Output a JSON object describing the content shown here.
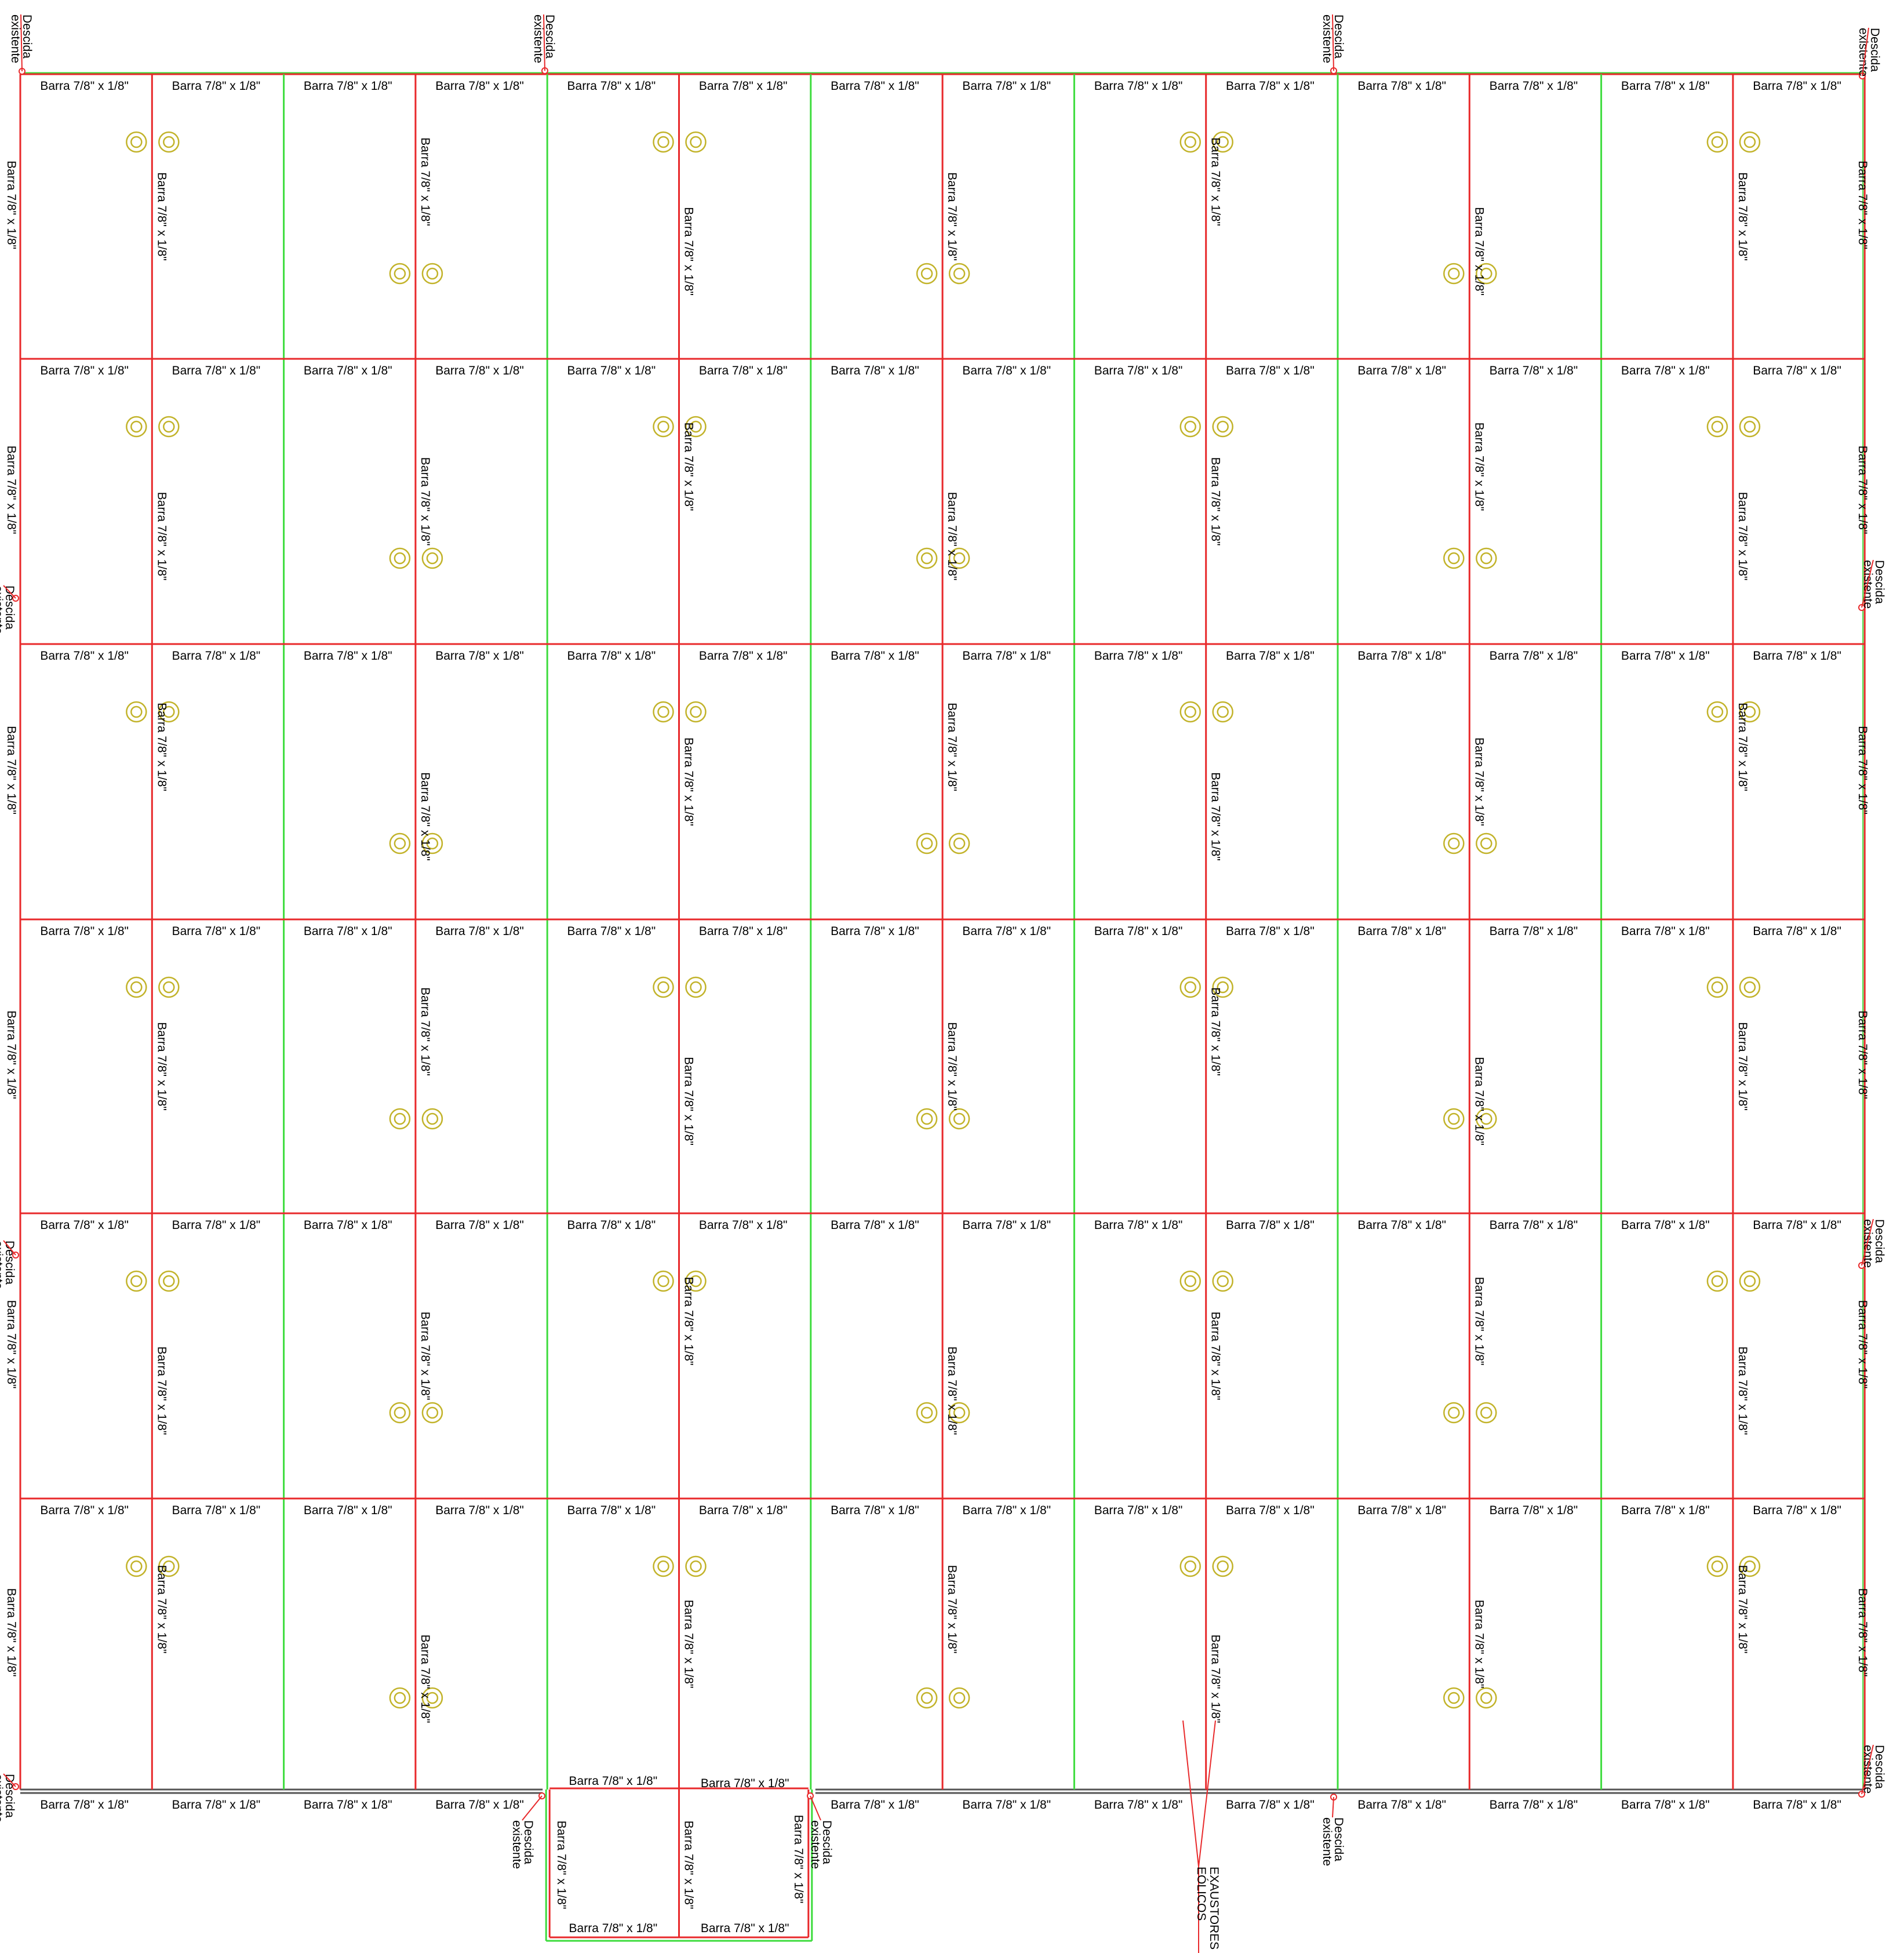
{
  "drawing": {
    "bar_label": "Barra 7/8\" x 1/8\"",
    "downconductor_label": [
      "Descida",
      "existente"
    ],
    "exhaust_label": [
      "EXAUSTORES",
      "EÓLICOS"
    ],
    "grid": {
      "columns": 14,
      "rows": 6,
      "annex_columns": 2
    },
    "downconductor_count": 14,
    "colors": {
      "conductor": "#e8292b",
      "ridge_line": "#3ddc3d",
      "exhaust_fan": "#c2b32a",
      "eave_line": "#555555",
      "text": "#000000",
      "background": "#ffffff"
    }
  }
}
